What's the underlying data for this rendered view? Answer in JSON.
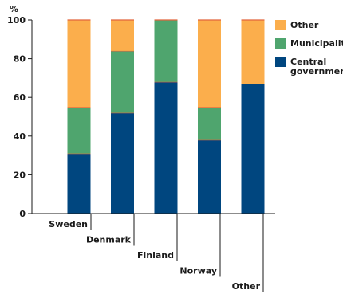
{
  "chart_data": {
    "type": "bar",
    "stacked": true,
    "ylabel": "%",
    "ylim": [
      0,
      100
    ],
    "yticks": [
      0,
      20,
      40,
      60,
      80,
      100
    ],
    "grid": false,
    "legend_position": "top-right",
    "categories": [
      "Sweden",
      "Denmark",
      "Finland",
      "Norway",
      "Other"
    ],
    "series": [
      {
        "name": "Central government",
        "color": "#00467f",
        "values": [
          31,
          52,
          68,
          38,
          67
        ]
      },
      {
        "name": "Municipalities",
        "color": "#4fa56e",
        "values": [
          24,
          32,
          32,
          17,
          0
        ]
      },
      {
        "name": "Other",
        "color": "#fbae4c",
        "values": [
          45,
          16,
          0,
          45,
          33
        ]
      }
    ],
    "legend": [
      {
        "lines": [
          "Other"
        ],
        "color": "#fbae4c"
      },
      {
        "lines": [
          "Municipalities"
        ],
        "color": "#4fa56e"
      },
      {
        "lines": [
          "Central",
          "government"
        ],
        "color": "#00467f"
      }
    ]
  }
}
